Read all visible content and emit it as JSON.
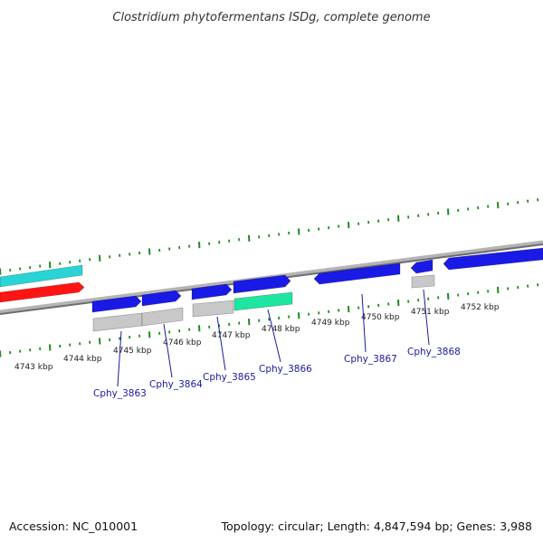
{
  "title": "Clostridium phytofermentans ISDg, complete genome",
  "footer": {
    "accession": "Accession: NC_010001",
    "topology": "Topology: circular; Length: 4,847,594 bp; Genes: 3,988"
  },
  "colors": {
    "forward_cds": "#1a1ae6",
    "feature_cyan": "#2ad4d4",
    "feature_red": "#ff1414",
    "feature_grey": "#c8c8c8",
    "feature_green": "#1ee6a0",
    "ticks": "#1f8a1f",
    "backbone": "#8c8c8c",
    "gene_label": "#1a1aa0"
  },
  "scale": {
    "unit": "kbp",
    "labels": [
      "4743 kbp",
      "4744 kbp",
      "4745 kbp",
      "4746 kbp",
      "4747 kbp",
      "4748 kbp",
      "4749 kbp",
      "4750 kbp",
      "4751 kbp",
      "4752 kbp"
    ]
  },
  "genes": [
    {
      "name": "Cphy_3863"
    },
    {
      "name": "Cphy_3864"
    },
    {
      "name": "Cphy_3865"
    },
    {
      "name": "Cphy_3866"
    },
    {
      "name": "Cphy_3867"
    },
    {
      "name": "Cphy_3868"
    }
  ]
}
